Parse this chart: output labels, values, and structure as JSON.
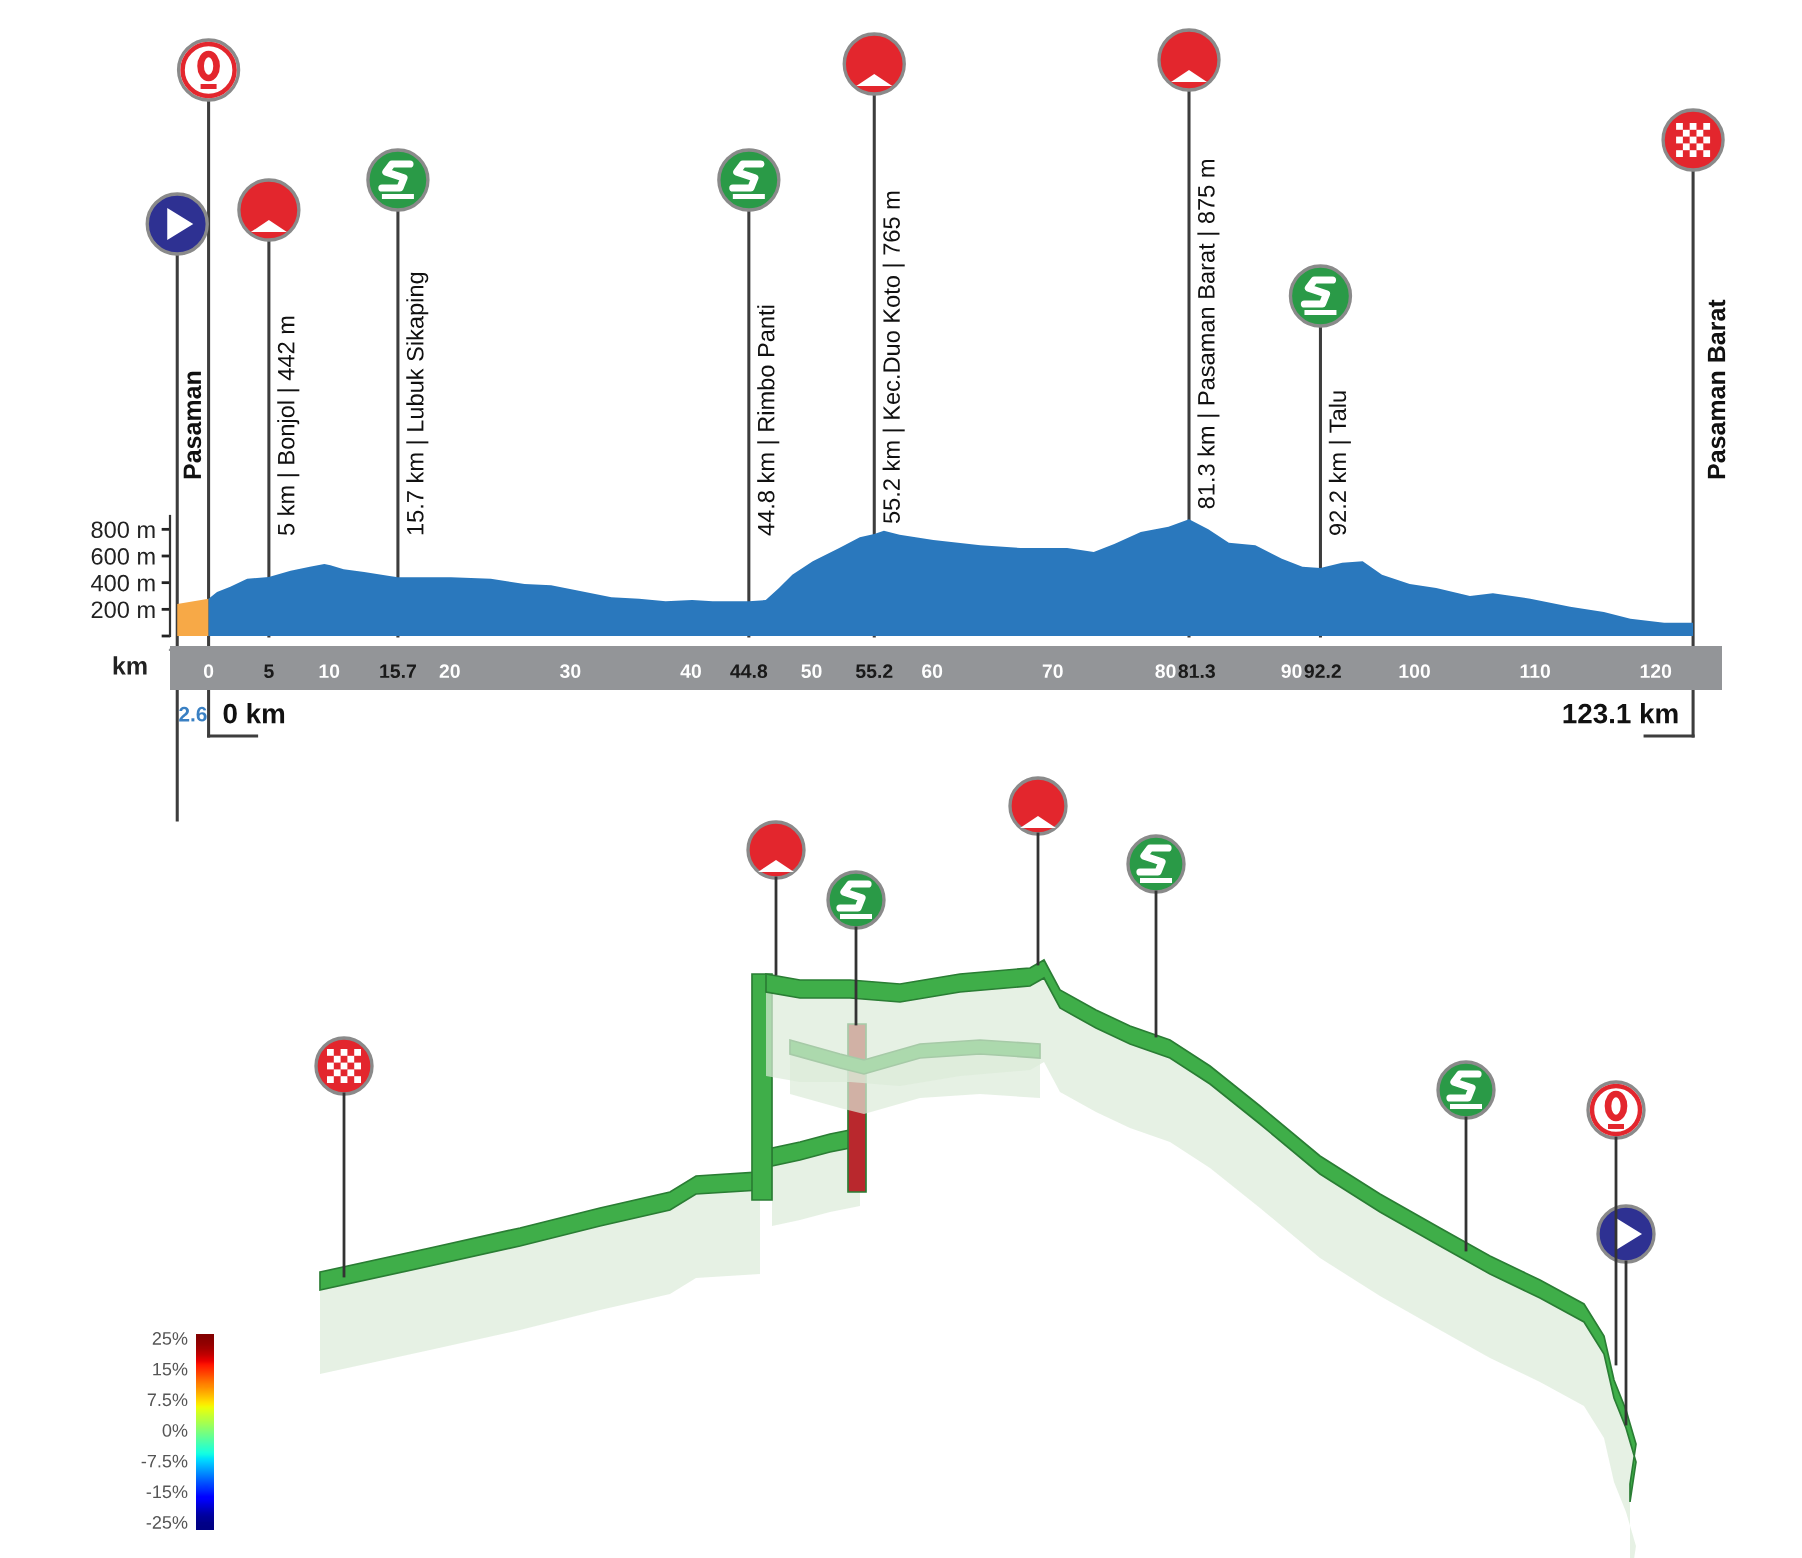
{
  "chart_data": [
    {
      "type": "area",
      "xlabel": "km",
      "series": [
        {
          "color": "#f7a947",
          "x": [
            -2.6,
            0
          ],
          "values": [
            240,
            280
          ]
        },
        {
          "color": "#2a78bd",
          "x": [
            0,
            0.7,
            1.8,
            3.2,
            5,
            6.8,
            8.4,
            9.6,
            10.1,
            11.2,
            12.9,
            15,
            15.7,
            16.8,
            20.1,
            23.4,
            26.2,
            28.4,
            30.7,
            33.4,
            35.7,
            37.9,
            40.1,
            41.8,
            44.8,
            46.2,
            47.3,
            48.4,
            50.1,
            52.3,
            54,
            55.2,
            56,
            57.3,
            60.1,
            64,
            67.3,
            71.2,
            73.4,
            75.1,
            77.3,
            79.6,
            81.3,
            82.9,
            84.6,
            86.8,
            89,
            90.7,
            92.2,
            94,
            95.7,
            97.3,
            99.6,
            101.8,
            104.6,
            106.5,
            109.6,
            112.9,
            115.7,
            117.9,
            120.7,
            123.1
          ],
          "values": [
            280,
            330,
            370,
            430,
            442,
            490,
            520,
            540,
            530,
            500,
            480,
            450,
            440,
            440,
            440,
            430,
            390,
            380,
            340,
            290,
            280,
            260,
            270,
            260,
            260,
            270,
            360,
            460,
            560,
            660,
            740,
            765,
            790,
            760,
            720,
            680,
            660,
            660,
            630,
            690,
            780,
            820,
            875,
            800,
            700,
            680,
            580,
            520,
            510,
            550,
            560,
            460,
            390,
            360,
            300,
            320,
            280,
            220,
            180,
            130,
            100,
            100
          ]
        }
      ],
      "xlim": [
        -3.2,
        125
      ],
      "xticks": [
        0,
        5,
        10,
        15.7,
        20,
        30,
        40,
        44.8,
        50,
        55.2,
        60,
        70,
        80,
        81.3,
        90,
        92.2,
        100,
        110,
        120
      ],
      "ylim": [
        0,
        900
      ],
      "yticks": [
        {
          "value": 0,
          "label": null
        },
        {
          "value": 200,
          "label": "200 m"
        },
        {
          "value": 400,
          "label": "400 m"
        },
        {
          "value": 600,
          "label": "600 m"
        },
        {
          "value": 800,
          "label": "800 m"
        }
      ],
      "ref_lines": [
        {
          "axis": "x",
          "value": -2.6,
          "label": "Pasaman",
          "color": "#3d3d3d"
        },
        {
          "axis": "x",
          "value": 0,
          "color": "#3d3d3d"
        },
        {
          "axis": "x",
          "value": 5,
          "label": "5 km | Bonjol | 442 m",
          "color": "#3d3d3d"
        },
        {
          "axis": "x",
          "value": 15.7,
          "label": "15.7 km | Lubuk Sikaping",
          "color": "#3d3d3d"
        },
        {
          "axis": "x",
          "value": 44.8,
          "label": "44.8 km | Rimbo Panti",
          "color": "#3d3d3d"
        },
        {
          "axis": "x",
          "value": 55.2,
          "label": "55.2 km | Kec.Duo Koto | 765 m",
          "color": "#3d3d3d"
        },
        {
          "axis": "x",
          "value": 81.3,
          "label": "81.3 km | Pasaman Barat | 875 m",
          "color": "#3d3d3d"
        },
        {
          "axis": "x",
          "value": 92.2,
          "label": "92.2 km | Talu",
          "color": "#3d3d3d"
        },
        {
          "axis": "x",
          "value": 123.1,
          "label": "Pasaman Barat",
          "color": "#3d3d3d"
        }
      ],
      "annotations": [
        "2.6",
        "0 km",
        "123.1 km"
      ]
    },
    {
      "type": "other",
      "annotations": [
        "25%",
        "15%",
        "7.5%",
        "0%",
        "-7.5%",
        "-15%",
        "-25%"
      ]
    }
  ]
}
